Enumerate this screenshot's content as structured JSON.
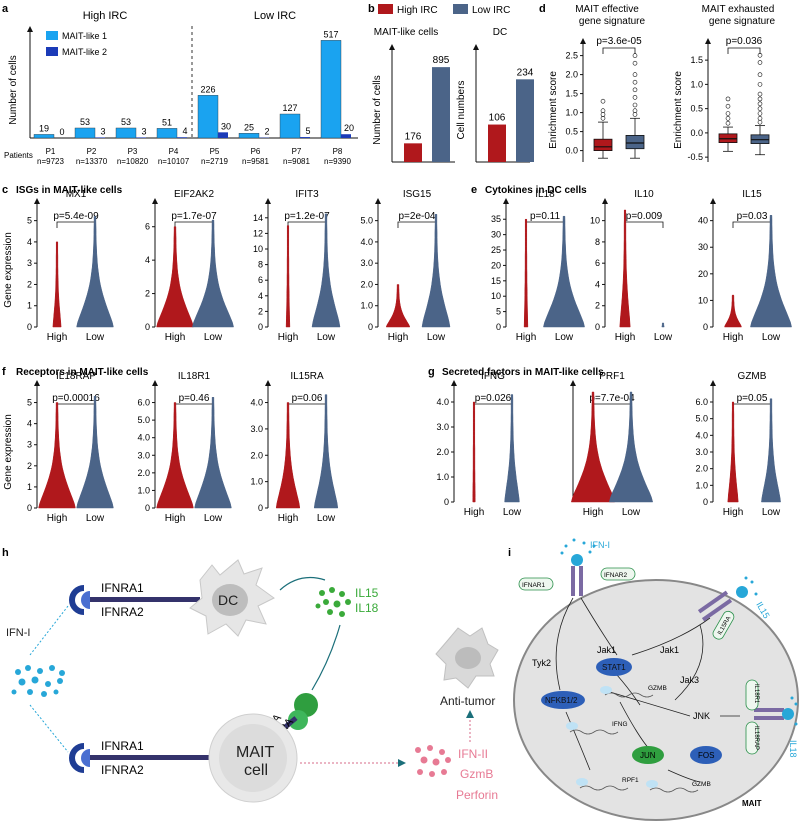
{
  "panels": {
    "a": "a",
    "b": "b",
    "c": "c",
    "d": "d",
    "e": "e",
    "f": "f",
    "g": "g",
    "h": "h",
    "i": "i"
  },
  "titles": {
    "c": "ISGs in MAIT-like cells",
    "e": "Cytokines in DC cells",
    "f": "Receptors in MAIT-like cells",
    "g": "Secreted factors in MAIT-like cells"
  },
  "colors": {
    "high": "#b0181c",
    "low": "#4b6488",
    "mait1": "#1aa3f0",
    "mait2": "#1b3bb8",
    "dc_green": "#3aaa3a",
    "ifn": "#27a7d8"
  },
  "chart_data": [
    {
      "id": "a",
      "type": "bar",
      "ylabel": "Number of cells",
      "groups": [
        "High IRC",
        "Low IRC"
      ],
      "legend": [
        "MAIT-like 1",
        "MAIT-like 2"
      ],
      "xlabel_prefix": "Patients",
      "categories": [
        "P1",
        "P2",
        "P3",
        "P4",
        "P5",
        "P6",
        "P7",
        "P8"
      ],
      "n_labels": [
        "n=9723",
        "n=13370",
        "n=10820",
        "n=10107",
        "n=2719",
        "n=9581",
        "n=9081",
        "n=9390"
      ],
      "series": [
        {
          "name": "MAIT-like 1",
          "values": [
            19,
            53,
            53,
            51,
            226,
            25,
            127,
            517
          ]
        },
        {
          "name": "MAIT-like 2",
          "values": [
            0,
            3,
            3,
            4,
            30,
            2,
            5,
            20
          ]
        }
      ],
      "ylim": [
        0,
        540
      ]
    },
    {
      "id": "b",
      "type": "bar",
      "legend": [
        "High IRC",
        "Low IRC"
      ],
      "subcharts": [
        {
          "title": "MAIT-like cells",
          "ylabel": "Number of cells",
          "values": [
            176,
            895
          ],
          "ylim": [
            0,
            1000
          ]
        },
        {
          "title": "DC",
          "ylabel": "Cell numbers",
          "values": [
            106,
            234
          ],
          "ylim": [
            0,
            300
          ]
        }
      ]
    },
    {
      "id": "d",
      "type": "box",
      "subcharts": [
        {
          "title": "MAIT effective gene signature",
          "ylabel": "Enrichment score",
          "pvalue": "p=3.6e-05",
          "ticks": [
            "0.0",
            "0.5",
            "1.0",
            "1.5",
            "2.0",
            "2.5"
          ],
          "ylim": [
            -0.3,
            2.7
          ],
          "boxes": [
            {
              "group": "High",
              "q1": 0.0,
              "median": 0.1,
              "q3": 0.3,
              "wlo": -0.2,
              "whi": 0.75,
              "outliers": [
                0.85,
                0.95,
                1.05,
                1.3
              ]
            },
            {
              "group": "Low",
              "q1": 0.05,
              "median": 0.2,
              "q3": 0.4,
              "wlo": -0.2,
              "whi": 0.85,
              "outliers": [
                0.95,
                1.05,
                1.2,
                1.4,
                1.6,
                1.8,
                2.0,
                2.3,
                2.5
              ]
            }
          ]
        },
        {
          "title": "MAIT exhausted gene signature",
          "ylabel": "Enrichment score",
          "pvalue": "p=0.036",
          "ticks": [
            "-0.5",
            "0.0",
            "0.5",
            "1.0",
            "1.5"
          ],
          "ylim": [
            -0.6,
            1.75
          ],
          "boxes": [
            {
              "group": "High",
              "q1": -0.2,
              "median": -0.12,
              "q3": -0.02,
              "wlo": -0.38,
              "whi": 0.12,
              "outliers": [
                0.2,
                0.3,
                0.4,
                0.55,
                0.7
              ]
            },
            {
              "group": "Low",
              "q1": -0.22,
              "median": -0.14,
              "q3": -0.04,
              "wlo": -0.45,
              "whi": 0.15,
              "outliers": [
                0.22,
                0.3,
                0.4,
                0.5,
                0.6,
                0.7,
                0.8,
                1.0,
                1.2,
                1.45,
                1.6
              ]
            }
          ]
        }
      ]
    },
    {
      "id": "violins",
      "type": "violin",
      "groups": [
        "High",
        "Low"
      ],
      "ylabel": "Gene expression",
      "plots": [
        {
          "row": "c",
          "gene": "MX1",
          "pvalue": "p=5.4e-09",
          "ticks": [
            "0",
            "1",
            "2",
            "3",
            "4",
            "5"
          ],
          "ymax": 5.5
        },
        {
          "row": "c",
          "gene": "EIF2AK2",
          "pvalue": "p=1.7e-07",
          "ticks": [
            "0",
            "2",
            "4",
            "6"
          ],
          "ymax": 7
        },
        {
          "row": "c",
          "gene": "IFIT3",
          "pvalue": "p=1.2e-07",
          "ticks": [
            "0",
            "2",
            "4",
            "6",
            "8",
            "10",
            "12",
            "14"
          ],
          "ymax": 15
        },
        {
          "row": "c",
          "gene": "ISG15",
          "pvalue": "p=2e-04",
          "ticks": [
            "0",
            "1.0",
            "2.0",
            "3.0",
            "4.0",
            "5.0"
          ],
          "ymax": 5.5
        },
        {
          "row": "e",
          "gene": "IL18",
          "pvalue": "p=0.11",
          "ticks": [
            "0",
            "5",
            "10",
            "15",
            "20",
            "25",
            "30",
            "35"
          ],
          "ymax": 38
        },
        {
          "row": "e",
          "gene": "IL10",
          "pvalue": "p=0.009",
          "ticks": [
            "0",
            "2",
            "4",
            "6",
            "8",
            "10"
          ],
          "ymax": 11
        },
        {
          "row": "e",
          "gene": "IL15",
          "pvalue": "p=0.03",
          "ticks": [
            "0",
            "10",
            "20",
            "30",
            "40"
          ],
          "ymax": 44
        },
        {
          "row": "f",
          "gene": "IL18RAP",
          "pvalue": "p=0.00016",
          "ticks": [
            "0",
            "1",
            "2",
            "3",
            "4",
            "5"
          ],
          "ymax": 5.5
        },
        {
          "row": "f",
          "gene": "IL18R1",
          "pvalue": "p=0.46",
          "ticks": [
            "0",
            "1.0",
            "2.0",
            "3.0",
            "4.0",
            "5.0",
            "6.0"
          ],
          "ymax": 6.6
        },
        {
          "row": "f",
          "gene": "IL15RA",
          "pvalue": "p=0.06",
          "ticks": [
            "0",
            "1.0",
            "2.0",
            "3.0",
            "4.0"
          ],
          "ymax": 4.4
        },
        {
          "row": "g",
          "gene": "IFNG",
          "pvalue": "p=0.026",
          "ticks": [
            "0",
            "1.0",
            "2.0",
            "3.0",
            "4.0"
          ],
          "ymax": 4.4
        },
        {
          "row": "g",
          "gene": "PRF1",
          "pvalue": "p=7.7e-04",
          "ticks": [],
          "ymax": 1
        },
        {
          "row": "g",
          "gene": "GZMB",
          "pvalue": "p=0.05",
          "ticks": [
            "0",
            "1.0",
            "2.0",
            "3.0",
            "4.0",
            "5.0",
            "6.0"
          ],
          "ymax": 6.6
        }
      ]
    }
  ],
  "schematic_h": {
    "ifn": "IFN-I",
    "dc": "DC",
    "ifnra1": "IFNRA1",
    "ifnra2": "IFNRA2",
    "il15": "IL15",
    "il18": "IL18",
    "il15ra": "IL15RA",
    "il18ra": "IL18RA",
    "mait_line1": "MAIT",
    "mait_line2": "cell",
    "anti_tumor": "Anti-tumor",
    "outputs": [
      "IFN-II",
      "GzmB",
      "Perforin"
    ]
  },
  "schematic_i": {
    "ifn": "IFN-I",
    "il15": "IL15",
    "il18": "IL18",
    "receptors": [
      "IFNAR1",
      "IFNAR2",
      "IL15RA",
      "IL18R1",
      "IL18RAP"
    ],
    "nodes": [
      "Tyk2",
      "Jak1",
      "Jak1",
      "Jak3",
      "STAT1",
      "NFKB1/2",
      "JNK",
      "JUN",
      "FOS"
    ],
    "genes": [
      "GZMB",
      "IFNG",
      "RPF1",
      "GZMB"
    ],
    "cell": "MAIT"
  }
}
